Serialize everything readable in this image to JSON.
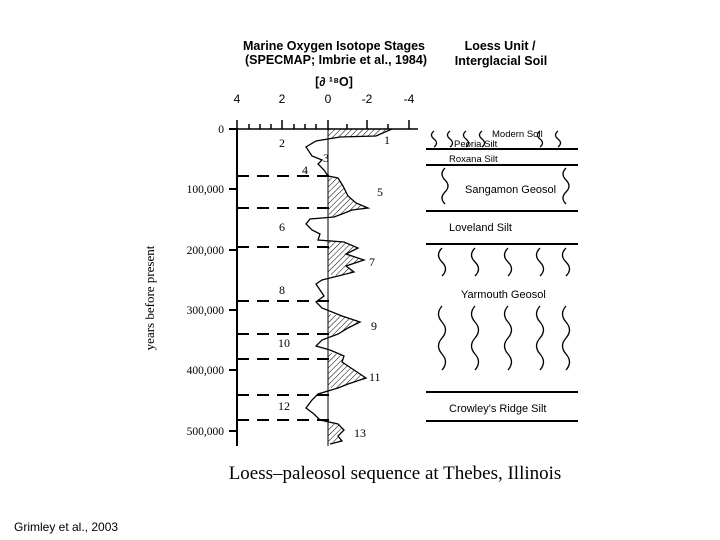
{
  "isotope_header": {
    "line1": "Marine Oxygen Isotope Stages",
    "line2": "(SPECMAP; Imbrie et al., 1984)"
  },
  "isotope_axis_label": "[∂ ¹⁸O]",
  "isotope_ticks": [
    "4",
    "2",
    "0",
    "-2",
    "-4"
  ],
  "loess_header": {
    "line1": "Loess Unit /",
    "line2": "Interglacial Soil"
  },
  "y_axis_label": "years before present",
  "age_labels": [
    "0",
    "100,000",
    "200,000",
    "300,000",
    "400,000",
    "500,000"
  ],
  "stage_labels": [
    "1",
    "2",
    "3",
    "4",
    "5",
    "6",
    "7",
    "8",
    "9",
    "10",
    "11",
    "12",
    "13"
  ],
  "stratigraphy": {
    "modern_soil": "Modern Soil",
    "peoria_silt": "Peoria Silt",
    "roxana_silt": "Roxana Silt",
    "sangamon_geosol": "Sangamon Geosol",
    "loveland_silt": "Loveland Silt",
    "yarmouth_geosol": "Yarmouth Geosol",
    "crowleys_ridge_silt": "Crowley's Ridge Silt"
  },
  "caption": "Loess–paleosol sequence at Thebes, Illinois",
  "credit": "Grimley et al., 2003"
}
